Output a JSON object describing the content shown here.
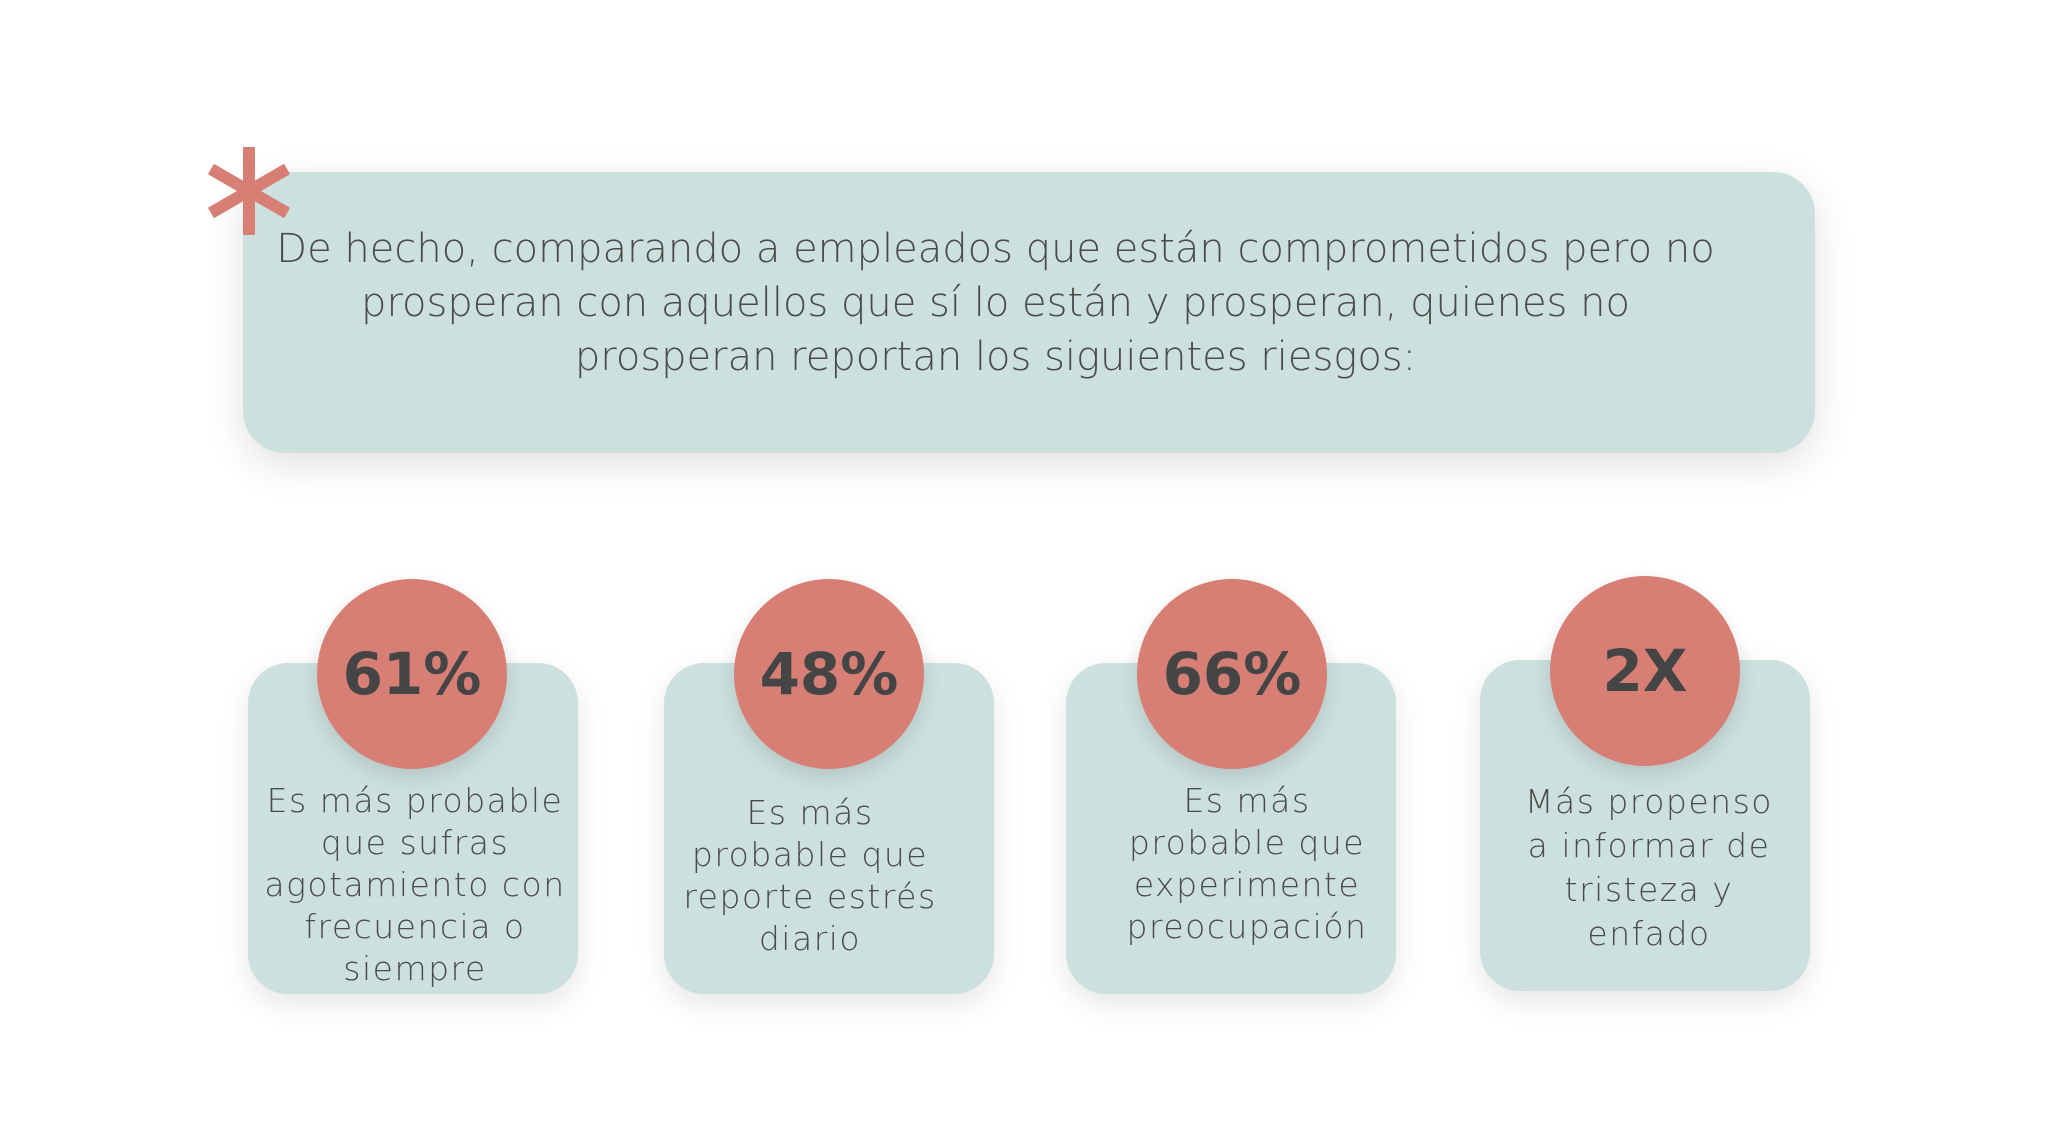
{
  "colors": {
    "box": "#cce0de",
    "accent": "#d77f75",
    "text": "#4a4a4a"
  },
  "decoration": {
    "icon": "asterisk-icon"
  },
  "intro": {
    "lines": [
      "De hecho, comparando a empleados que están comprometidos pero no",
      "prosperan con aquellos que sí lo están y prosperan, quienes  no",
      "prosperan reportan los siguientes riesgos:"
    ]
  },
  "stats": [
    {
      "value": "61%",
      "lines": [
        "Es más probable",
        "que sufras",
        "agotamiento con",
        "frecuencia o",
        "siempre"
      ]
    },
    {
      "value": "48%",
      "lines": [
        "Es más",
        "probable que",
        "reporte estrés",
        "diario"
      ]
    },
    {
      "value": "66%",
      "lines": [
        "Es más",
        "probable que",
        "experimente",
        "preocupación"
      ]
    },
    {
      "value": "2X",
      "lines": [
        "Más propenso",
        "a informar de",
        "tristeza y",
        "enfado"
      ]
    }
  ]
}
